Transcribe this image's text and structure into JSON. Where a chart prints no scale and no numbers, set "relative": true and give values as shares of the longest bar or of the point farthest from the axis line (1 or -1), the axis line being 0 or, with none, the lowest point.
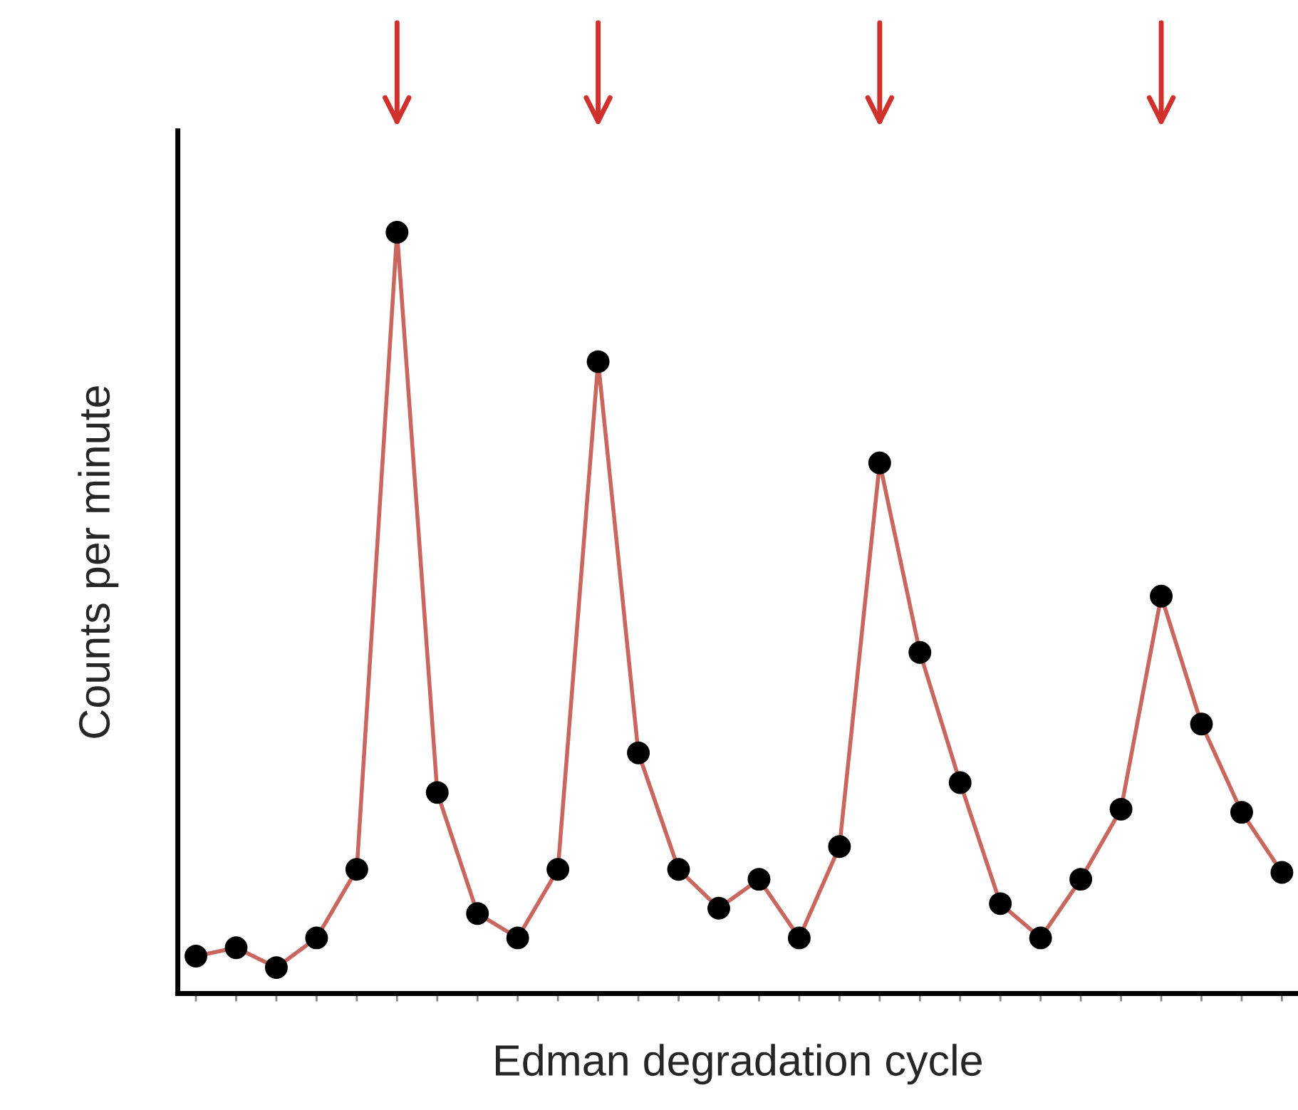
{
  "chart_data": {
    "type": "line",
    "xlabel": "Edman degradation cycle",
    "ylabel": "Counts per minute",
    "relative": true,
    "marker": "circle",
    "grid": false,
    "categories": [
      null,
      null,
      null,
      null,
      null,
      null,
      null,
      null,
      null,
      null,
      null,
      null,
      null,
      null,
      null,
      null,
      null,
      null,
      null,
      null,
      null,
      null,
      null,
      null,
      null,
      null,
      null,
      null
    ],
    "series": [
      {
        "color": "#c9675f",
        "values": [
          0.049,
          0.06,
          0.034,
          0.073,
          0.163,
          1,
          0.264,
          0.105,
          0.073,
          0.163,
          0.83,
          0.316,
          0.163,
          0.112,
          0.15,
          0.073,
          0.193,
          0.697,
          0.448,
          0.277,
          0.118,
          0.073,
          0.15,
          0.242,
          0.522,
          0.354,
          0.238,
          0.159
        ]
      }
    ]
  }
}
